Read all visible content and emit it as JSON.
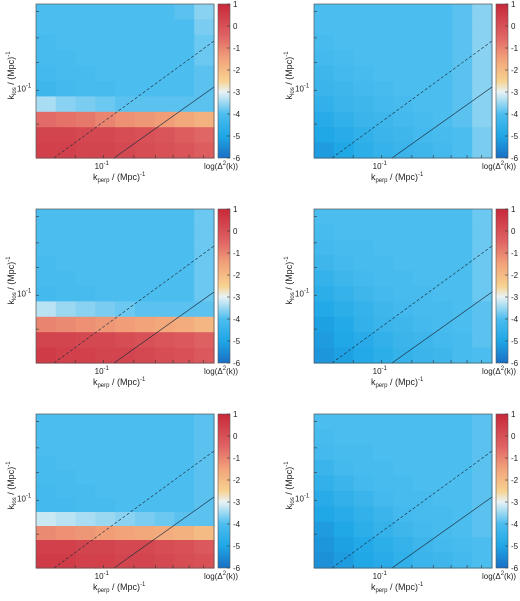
{
  "colorbar": {
    "ticks": [
      "1",
      "0",
      "-1",
      "-2",
      "-3",
      "-4",
      "-5",
      "-6"
    ],
    "label_main": "log(Δ",
    "label_sup": "2",
    "label_tail": "(k))"
  },
  "axes": {
    "ylabel_main": "k",
    "ylabel_sub": "los",
    "ylabel_tail": " / (Mpc)",
    "ylabel_sup": "-1",
    "xlabel_main": "k",
    "xlabel_sub": "perp",
    "xlabel_tail": " / (Mpc)",
    "xlabel_sup": "-1",
    "tick_base": "10",
    "tick_exp": "-1"
  },
  "chart_data": [
    {
      "type": "heatmap",
      "panel": "row1-left",
      "zlim": [
        -6,
        1
      ],
      "log_scale": true,
      "grid": false,
      "colorbar_label": "log(Δ²(k))",
      "rows": [
        [
          -4.0,
          -4.0,
          -4.0,
          -4.0,
          -4.0,
          -4.0,
          -4.0,
          -3.9,
          -3.6
        ],
        [
          -4.0,
          -4.0,
          -4.0,
          -4.0,
          -4.0,
          -4.0,
          -4.0,
          -4.0,
          -3.7
        ],
        [
          -4.1,
          -4.0,
          -4.0,
          -4.0,
          -4.0,
          -4.0,
          -4.0,
          -4.0,
          -3.8
        ],
        [
          -4.1,
          -4.1,
          -4.0,
          -4.0,
          -4.0,
          -4.0,
          -4.0,
          -4.0,
          -3.8
        ],
        [
          -4.2,
          -4.1,
          -4.1,
          -4.0,
          -4.0,
          -4.0,
          -4.0,
          -4.0,
          -3.9
        ],
        [
          -4.3,
          -4.2,
          -4.1,
          -4.1,
          -4.0,
          -4.0,
          -4.0,
          -4.0,
          -3.9
        ],
        [
          -3.4,
          -3.6,
          -3.7,
          -3.8,
          -3.9,
          -3.9,
          -3.9,
          -3.9,
          -3.9
        ],
        [
          -0.6,
          -0.7,
          -0.8,
          -1.0,
          -1.2,
          -1.3,
          -1.4,
          -1.6,
          -1.8
        ],
        [
          0.3,
          0.3,
          0.2,
          0.2,
          0.1,
          0.0,
          -0.1,
          -0.3,
          -0.5
        ],
        [
          0.4,
          0.4,
          0.3,
          0.3,
          0.2,
          0.1,
          0.0,
          -0.1,
          -0.3
        ]
      ]
    },
    {
      "type": "heatmap",
      "panel": "row1-right",
      "zlim": [
        -6,
        1
      ],
      "log_scale": true,
      "grid": false,
      "colorbar_label": "log(Δ²(k))",
      "rows": [
        [
          -4.0,
          -4.0,
          -4.0,
          -4.0,
          -4.0,
          -4.0,
          -4.0,
          -3.9,
          -3.6
        ],
        [
          -4.0,
          -4.0,
          -4.0,
          -4.0,
          -4.0,
          -4.0,
          -4.0,
          -3.9,
          -3.6
        ],
        [
          -4.1,
          -4.0,
          -4.0,
          -4.0,
          -4.0,
          -4.0,
          -4.0,
          -3.9,
          -3.6
        ],
        [
          -4.2,
          -4.1,
          -4.0,
          -4.0,
          -4.0,
          -4.0,
          -4.0,
          -3.9,
          -3.6
        ],
        [
          -4.3,
          -4.2,
          -4.1,
          -4.0,
          -4.0,
          -4.0,
          -4.0,
          -3.9,
          -3.6
        ],
        [
          -4.4,
          -4.3,
          -4.2,
          -4.1,
          -4.0,
          -4.0,
          -4.0,
          -3.9,
          -3.6
        ],
        [
          -4.6,
          -4.4,
          -4.3,
          -4.2,
          -4.1,
          -4.0,
          -4.0,
          -3.9,
          -3.6
        ],
        [
          -4.8,
          -4.6,
          -4.4,
          -4.3,
          -4.2,
          -4.1,
          -4.0,
          -3.9,
          -3.6
        ],
        [
          -5.0,
          -4.8,
          -4.6,
          -4.4,
          -4.3,
          -4.2,
          -4.1,
          -4.0,
          -3.7
        ],
        [
          -5.2,
          -5.0,
          -4.7,
          -4.5,
          -4.4,
          -4.3,
          -4.2,
          -4.0,
          -3.7
        ]
      ]
    },
    {
      "type": "heatmap",
      "panel": "row2-left",
      "zlim": [
        -6,
        1
      ],
      "log_scale": true,
      "grid": false,
      "colorbar_label": "log(Δ²(k))",
      "rows": [
        [
          -4.0,
          -4.0,
          -4.0,
          -4.0,
          -4.0,
          -4.0,
          -4.0,
          -4.0,
          -3.8
        ],
        [
          -4.0,
          -4.0,
          -4.0,
          -4.0,
          -4.0,
          -4.0,
          -4.0,
          -4.0,
          -3.8
        ],
        [
          -4.0,
          -4.0,
          -4.0,
          -4.0,
          -4.0,
          -4.0,
          -4.0,
          -4.0,
          -3.8
        ],
        [
          -4.1,
          -4.0,
          -4.0,
          -4.0,
          -4.0,
          -4.0,
          -4.0,
          -4.0,
          -3.8
        ],
        [
          -4.1,
          -4.1,
          -4.0,
          -4.0,
          -4.0,
          -4.0,
          -4.0,
          -4.0,
          -3.8
        ],
        [
          -4.2,
          -4.1,
          -4.1,
          -4.0,
          -4.0,
          -4.0,
          -4.0,
          -4.0,
          -3.8
        ],
        [
          -3.3,
          -3.5,
          -3.6,
          -3.7,
          -3.8,
          -3.9,
          -3.9,
          -3.9,
          -3.9
        ],
        [
          -1.0,
          -1.1,
          -1.2,
          -1.3,
          -1.4,
          -1.5,
          -1.6,
          -1.7,
          -1.9
        ],
        [
          0.3,
          0.3,
          0.2,
          0.2,
          0.1,
          0.0,
          -0.1,
          -0.2,
          -0.4
        ],
        [
          0.5,
          0.4,
          0.4,
          0.3,
          0.3,
          0.2,
          0.1,
          0.0,
          -0.2
        ]
      ]
    },
    {
      "type": "heatmap",
      "panel": "row2-right",
      "zlim": [
        -6,
        1
      ],
      "log_scale": true,
      "grid": false,
      "colorbar_label": "log(Δ²(k))",
      "rows": [
        [
          -4.0,
          -4.0,
          -4.0,
          -4.0,
          -4.0,
          -4.0,
          -4.0,
          -4.0,
          -3.8
        ],
        [
          -4.1,
          -4.0,
          -4.0,
          -4.0,
          -4.0,
          -4.0,
          -4.0,
          -4.0,
          -3.8
        ],
        [
          -4.2,
          -4.1,
          -4.1,
          -4.0,
          -4.0,
          -4.0,
          -4.0,
          -4.0,
          -3.8
        ],
        [
          -4.3,
          -4.2,
          -4.1,
          -4.1,
          -4.0,
          -4.0,
          -4.0,
          -4.0,
          -3.8
        ],
        [
          -4.5,
          -4.3,
          -4.2,
          -4.1,
          -4.1,
          -4.0,
          -4.0,
          -4.0,
          -3.8
        ],
        [
          -4.7,
          -4.5,
          -4.3,
          -4.2,
          -4.1,
          -4.1,
          -4.0,
          -4.0,
          -3.8
        ],
        [
          -4.9,
          -4.7,
          -4.5,
          -4.3,
          -4.2,
          -4.1,
          -4.1,
          -4.0,
          -3.9
        ],
        [
          -5.1,
          -4.9,
          -4.6,
          -4.4,
          -4.3,
          -4.2,
          -4.1,
          -4.0,
          -3.9
        ],
        [
          -5.2,
          -5.0,
          -4.8,
          -4.6,
          -4.4,
          -4.3,
          -4.2,
          -4.1,
          -3.9
        ],
        [
          -5.3,
          -5.1,
          -4.9,
          -4.7,
          -4.5,
          -4.4,
          -4.3,
          -4.1,
          -4.0
        ]
      ]
    },
    {
      "type": "heatmap",
      "panel": "row3-left",
      "zlim": [
        -6,
        1
      ],
      "log_scale": true,
      "grid": false,
      "colorbar_label": "log(Δ²(k))",
      "rows": [
        [
          -4.0,
          -4.0,
          -4.0,
          -4.0,
          -4.0,
          -4.0,
          -4.0,
          -4.0,
          -3.9
        ],
        [
          -4.0,
          -4.0,
          -4.0,
          -4.0,
          -4.0,
          -4.0,
          -4.0,
          -4.0,
          -3.9
        ],
        [
          -4.0,
          -4.0,
          -4.0,
          -4.0,
          -4.0,
          -4.0,
          -4.0,
          -4.0,
          -3.9
        ],
        [
          -4.1,
          -4.0,
          -4.0,
          -4.0,
          -4.0,
          -4.0,
          -4.0,
          -4.0,
          -3.9
        ],
        [
          -4.1,
          -4.1,
          -4.0,
          -4.0,
          -4.0,
          -4.0,
          -4.0,
          -4.0,
          -3.9
        ],
        [
          -4.2,
          -4.1,
          -4.1,
          -4.0,
          -4.0,
          -4.0,
          -4.0,
          -4.0,
          -3.9
        ],
        [
          -4.2,
          -4.2,
          -4.1,
          -4.1,
          -4.0,
          -4.0,
          -4.0,
          -4.0,
          -3.9
        ],
        [
          -3.2,
          -3.3,
          -3.4,
          -3.5,
          -3.6,
          -3.7,
          -3.8,
          -3.9,
          -3.9
        ],
        [
          -1.1,
          -1.2,
          -1.3,
          -1.4,
          -1.5,
          -1.6,
          -1.7,
          -1.8,
          -2.0
        ],
        [
          0.4,
          0.4,
          0.3,
          0.3,
          0.2,
          0.2,
          0.1,
          0.0,
          -0.2
        ],
        [
          0.5,
          0.5,
          0.4,
          0.4,
          0.3,
          0.3,
          0.2,
          0.1,
          0.0
        ]
      ]
    },
    {
      "type": "heatmap",
      "panel": "row3-right",
      "zlim": [
        -6,
        1
      ],
      "log_scale": true,
      "grid": false,
      "colorbar_label": "log(Δ²(k))",
      "rows": [
        [
          -4.0,
          -4.0,
          -4.0,
          -4.0,
          -4.0,
          -4.0,
          -4.0,
          -4.0,
          -3.9
        ],
        [
          -4.1,
          -4.0,
          -4.0,
          -4.0,
          -4.0,
          -4.0,
          -4.0,
          -4.0,
          -3.9
        ],
        [
          -4.2,
          -4.1,
          -4.1,
          -4.0,
          -4.0,
          -4.0,
          -4.0,
          -4.0,
          -3.9
        ],
        [
          -4.4,
          -4.2,
          -4.1,
          -4.1,
          -4.0,
          -4.0,
          -4.0,
          -4.0,
          -3.9
        ],
        [
          -4.6,
          -4.4,
          -4.2,
          -4.1,
          -4.1,
          -4.0,
          -4.0,
          -4.0,
          -3.9
        ],
        [
          -4.8,
          -4.6,
          -4.4,
          -4.2,
          -4.1,
          -4.1,
          -4.0,
          -4.0,
          -3.9
        ],
        [
          -5.0,
          -4.8,
          -4.6,
          -4.4,
          -4.2,
          -4.1,
          -4.1,
          -4.0,
          -3.9
        ],
        [
          -5.2,
          -5.0,
          -4.7,
          -4.5,
          -4.3,
          -4.2,
          -4.1,
          -4.0,
          -3.9
        ],
        [
          -5.3,
          -5.1,
          -4.9,
          -4.7,
          -4.5,
          -4.3,
          -4.2,
          -4.1,
          -4.0
        ],
        [
          -5.4,
          -5.2,
          -5.0,
          -4.8,
          -4.6,
          -4.4,
          -4.3,
          -4.2,
          -4.0
        ]
      ]
    }
  ]
}
